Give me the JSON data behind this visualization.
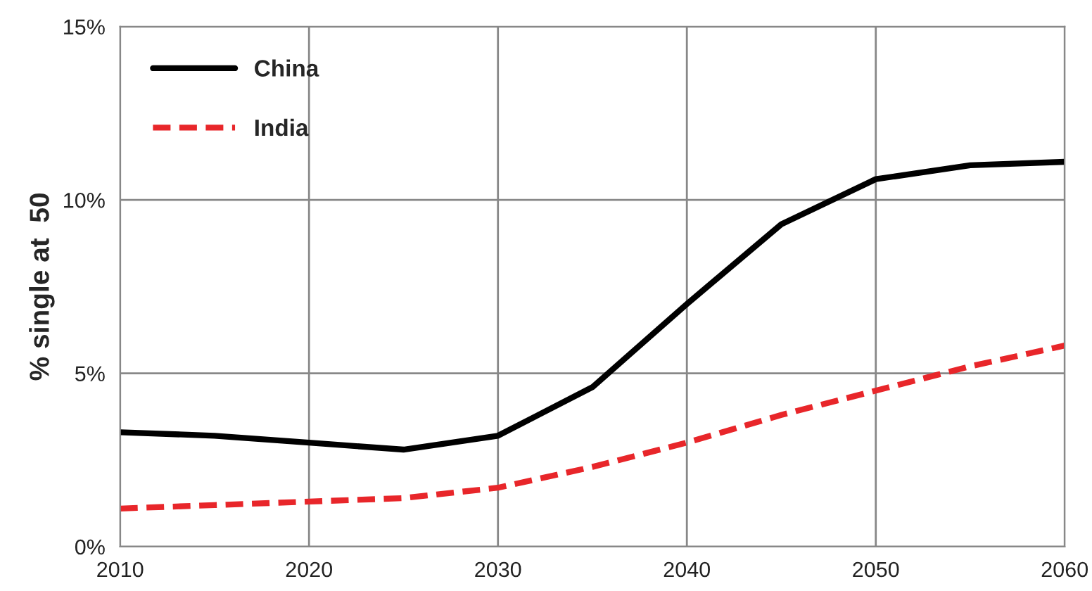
{
  "chart_data": {
    "type": "line",
    "ylabel": "% single at  50",
    "x": [
      2010,
      2015,
      2020,
      2025,
      2030,
      2035,
      2040,
      2045,
      2050,
      2055,
      2060
    ],
    "series": [
      {
        "name": "China",
        "color": "#000000",
        "line_style": "solid",
        "values": [
          3.3,
          3.2,
          3.0,
          2.8,
          3.2,
          4.6,
          7.0,
          9.3,
          10.6,
          11.0,
          11.1
        ]
      },
      {
        "name": "India",
        "color": "#e8262a",
        "line_style": "dashed",
        "values": [
          1.1,
          1.2,
          1.3,
          1.4,
          1.7,
          2.3,
          3.0,
          3.8,
          4.5,
          5.2,
          5.8
        ]
      }
    ],
    "xlim": [
      2010,
      2060
    ],
    "xticks": [
      2010,
      2020,
      2030,
      2040,
      2050,
      2060
    ],
    "ylim": [
      0,
      15
    ],
    "yticks": [
      {
        "value": 0,
        "label": "0%"
      },
      {
        "value": 5,
        "label": "5%"
      },
      {
        "value": 10,
        "label": "10%"
      },
      {
        "value": 15,
        "label": "15%"
      }
    ],
    "grid": true,
    "legend": "top left",
    "marker": "none"
  }
}
